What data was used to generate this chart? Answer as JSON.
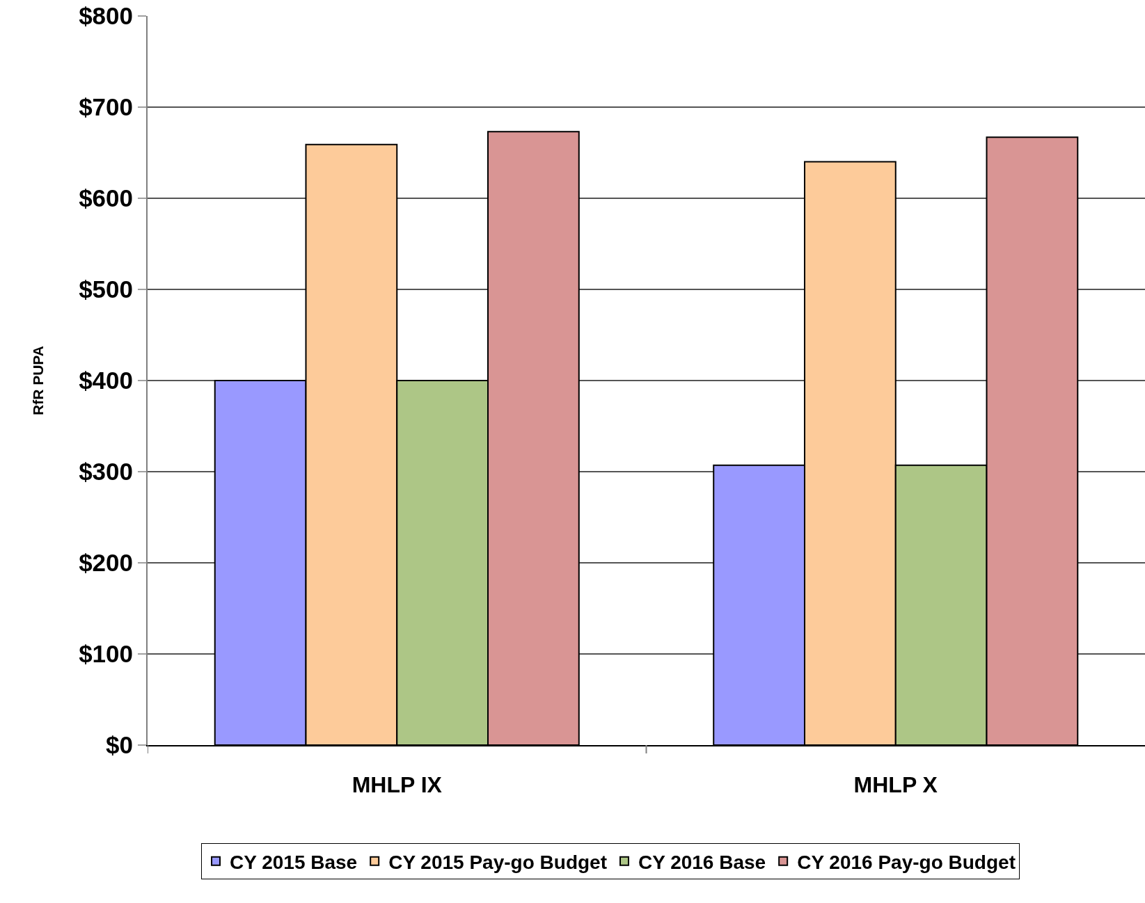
{
  "chart_data": {
    "type": "bar",
    "ylabel": "RfR PUPA",
    "categories": [
      "MHLP IX",
      "MHLP X"
    ],
    "series": [
      {
        "name": "CY 2015 Base",
        "color": "#9999ff",
        "values": [
          400,
          307
        ]
      },
      {
        "name": "CY 2015 Pay-go Budget",
        "color": "#fdcb9a",
        "values": [
          659,
          640
        ]
      },
      {
        "name": "CY 2016 Base",
        "color": "#adc686",
        "values": [
          400,
          307
        ]
      },
      {
        "name": "CY 2016 Pay-go Budget",
        "color": "#d99594",
        "values": [
          673,
          667
        ]
      }
    ],
    "ylim": [
      0,
      800
    ],
    "yticks": [
      {
        "value": 0,
        "label": "$0"
      },
      {
        "value": 100,
        "label": "$100"
      },
      {
        "value": 200,
        "label": "$200"
      },
      {
        "value": 300,
        "label": "$300"
      },
      {
        "value": 400,
        "label": "$400"
      },
      {
        "value": 500,
        "label": "$500"
      },
      {
        "value": 600,
        "label": "$600"
      },
      {
        "value": 700,
        "label": "$700"
      },
      {
        "value": 800,
        "label": "$800"
      }
    ],
    "grid": "y",
    "legend": "bottom"
  }
}
